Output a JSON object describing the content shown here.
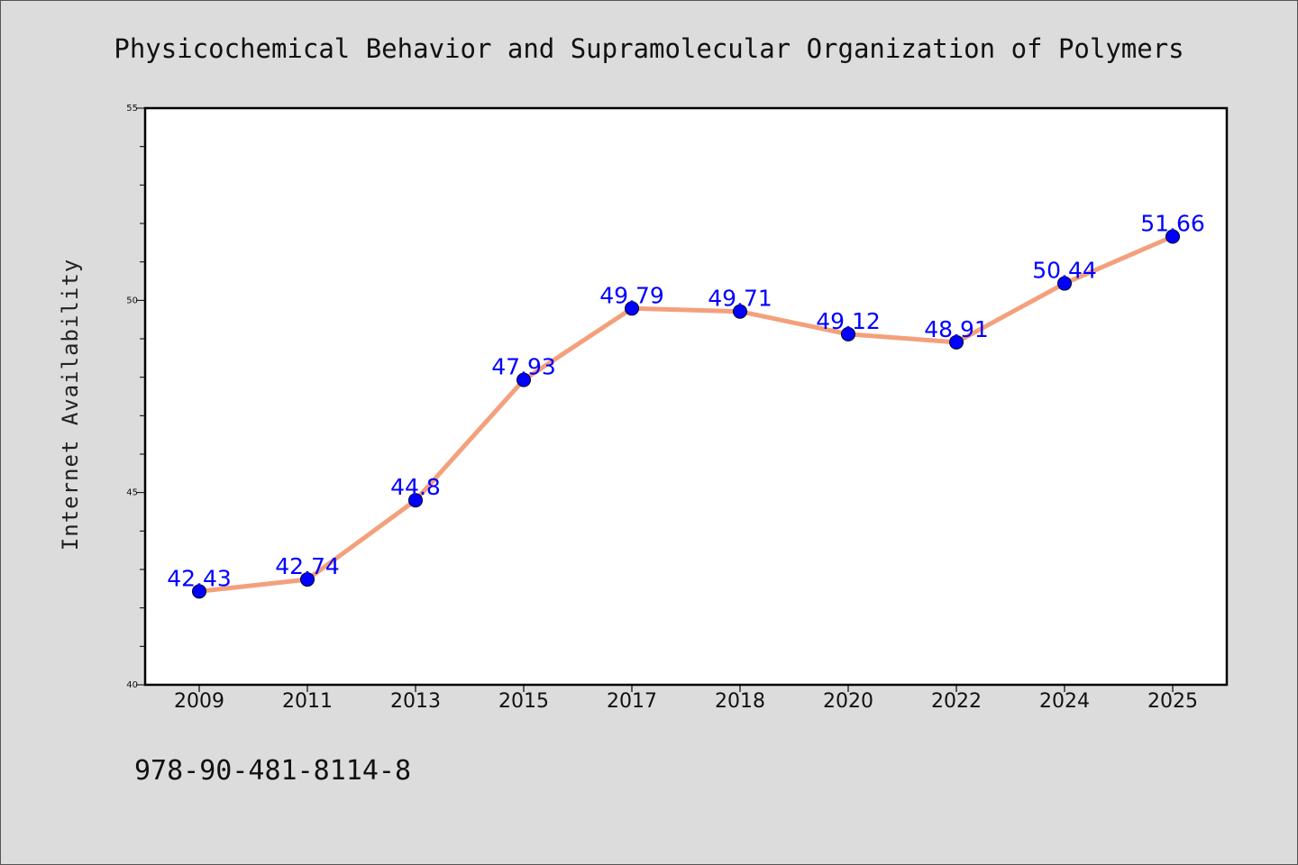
{
  "chart_data": {
    "type": "line",
    "title": "Physicochemical Behavior and Supramolecular Organization of Polymers",
    "xlabel": "",
    "ylabel": "Internet Availability",
    "categories": [
      "2009",
      "2011",
      "2013",
      "2015",
      "2017",
      "2018",
      "2020",
      "2022",
      "2024",
      "2025"
    ],
    "values": [
      42.43,
      42.74,
      44.8,
      47.93,
      49.79,
      49.71,
      49.12,
      48.91,
      50.44,
      51.66
    ],
    "data_labels": [
      "42.43",
      "42.74",
      "44.8",
      "47.93",
      "49.79",
      "49.71",
      "49.12",
      "48.91",
      "50.44",
      "51.66"
    ],
    "ylim": [
      40,
      55
    ],
    "yticks": [
      "40",
      "45",
      "50",
      "55"
    ],
    "grid": false,
    "legend": "none",
    "colors": {
      "line": "#f4a07c",
      "marker": "#0000ff",
      "data_label": "#0000ff",
      "plot_background": "#ffffff",
      "page_background": "#dcdcdc"
    }
  },
  "footnote": "978-90-481-8114-8"
}
